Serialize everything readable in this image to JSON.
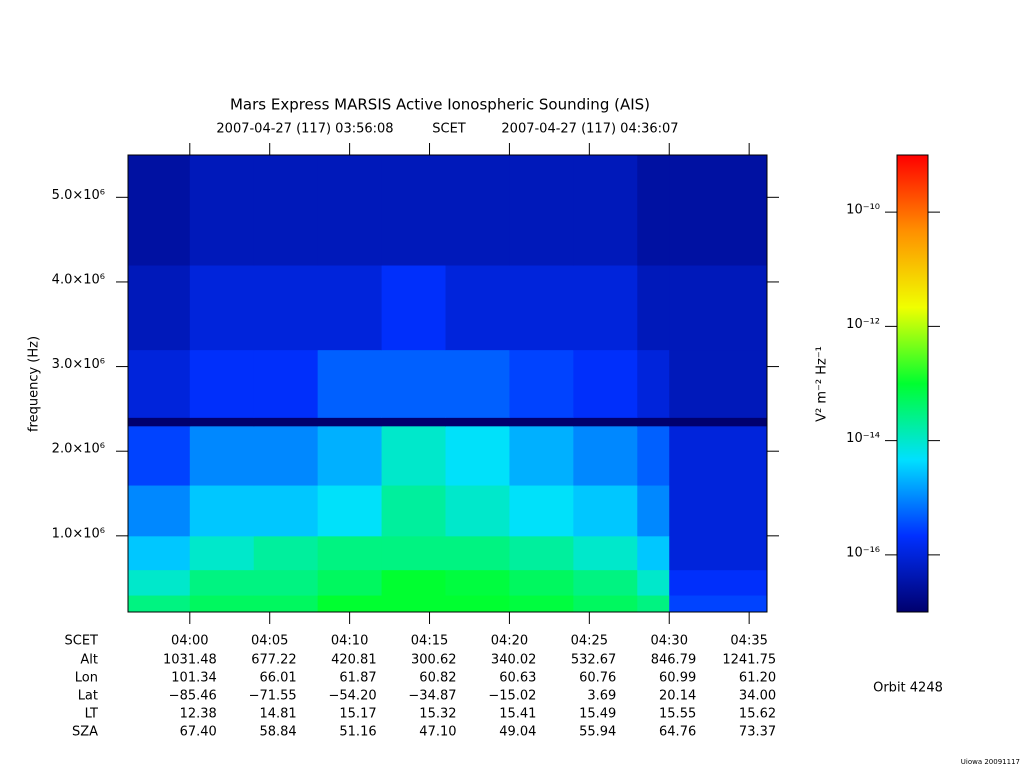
{
  "chart_data": {
    "type": "heatmap",
    "title": "Mars Express MARSIS Active Ionospheric Sounding (AIS)",
    "subtitle": {
      "start": "2007-04-27 (117) 03:56:08",
      "center": "SCET",
      "end": "2007-04-27 (117) 04:36:07"
    },
    "ylabel": "frequency (Hz)",
    "xlim": [
      "03:56:08",
      "04:36:07"
    ],
    "xticks": [
      "04:00",
      "04:05",
      "04:10",
      "04:15",
      "04:20",
      "04:25",
      "04:30",
      "04:35"
    ],
    "ylim": [
      100000,
      5500000
    ],
    "yticks": [
      {
        "value": 1000000,
        "label": "1.0×10⁶"
      },
      {
        "value": 2000000,
        "label": "2.0×10⁶"
      },
      {
        "value": 3000000,
        "label": "3.0×10⁶"
      },
      {
        "value": 4000000,
        "label": "4.0×10⁶"
      },
      {
        "value": 5000000,
        "label": "5.0×10⁶"
      }
    ],
    "xbins": [
      "03:56:08",
      "04:00:00",
      "04:04:00",
      "04:08:00",
      "04:12:00",
      "04:16:00",
      "04:20:00",
      "04:24:00",
      "04:28:00",
      "04:30:00",
      "04:36:07"
    ],
    "ybins": [
      100000,
      300000,
      600000,
      1000000,
      1600000,
      2300000,
      2400000,
      3200000,
      4200000,
      5500000
    ],
    "z": [
      [
        3e-14,
        5e-14,
        5e-14,
        1e-13,
        1e-13,
        1e-13,
        8e-14,
        5e-14,
        3e-14,
        3e-16
      ],
      [
        1e-14,
        3e-14,
        3e-14,
        5e-14,
        1e-13,
        8e-14,
        5e-14,
        3e-14,
        1e-14,
        2e-16
      ],
      [
        3e-15,
        1e-14,
        2e-14,
        3e-14,
        3e-14,
        3e-14,
        2e-14,
        1e-14,
        3e-15,
        1e-16
      ],
      [
        1e-15,
        3e-15,
        3e-15,
        5e-15,
        2e-14,
        1e-14,
        5e-15,
        3e-15,
        1e-15,
        1e-16
      ],
      [
        3e-16,
        1e-15,
        1e-15,
        2e-15,
        1e-14,
        5e-15,
        2e-15,
        1e-15,
        5e-16,
        1e-16
      ],
      [
        1e-17,
        1e-17,
        1e-17,
        1e-17,
        1e-17,
        1e-17,
        1e-17,
        1e-17,
        1e-17,
        1e-17
      ],
      [
        1e-16,
        2e-16,
        2e-16,
        5e-16,
        5e-16,
        5e-16,
        3e-16,
        2e-16,
        1e-16,
        5e-17
      ],
      [
        5e-17,
        1e-16,
        1e-16,
        1e-16,
        2e-16,
        1e-16,
        1e-16,
        1e-16,
        5e-17,
        5e-17
      ],
      [
        3e-17,
        5e-17,
        5e-17,
        5e-17,
        5e-17,
        5e-17,
        5e-17,
        5e-17,
        3e-17,
        3e-17
      ]
    ],
    "zlim": [
      1e-17,
      1e-09
    ],
    "zscale": "log",
    "zticks": [
      {
        "value": 1e-10,
        "label": "10⁻¹⁰"
      },
      {
        "value": 1e-12,
        "label": "10⁻¹²"
      },
      {
        "value": 1e-14,
        "label": "10⁻¹⁴"
      },
      {
        "value": 1e-16,
        "label": "10⁻¹⁶"
      }
    ],
    "zlabel": "V² m⁻² Hz⁻¹",
    "colormap": [
      "#00006e",
      "#0030ff",
      "#00e0ff",
      "#00ff30",
      "#f0ff00",
      "#ff9000",
      "#ff0000"
    ],
    "ephemeris": {
      "label": "SCET",
      "rows": [
        {
          "name": "Alt",
          "values": [
            "1031.48",
            "677.22",
            "420.81",
            "300.62",
            "340.02",
            "532.67",
            "846.79",
            "1241.75"
          ]
        },
        {
          "name": "Lon",
          "values": [
            "101.34",
            "66.01",
            "61.87",
            "60.82",
            "60.63",
            "60.76",
            "60.99",
            "61.20"
          ]
        },
        {
          "name": "Lat",
          "values": [
            "−85.46",
            "−71.55",
            "−54.20",
            "−34.87",
            "−15.02",
            "3.69",
            "20.14",
            "34.00"
          ]
        },
        {
          "name": "LT",
          "values": [
            "12.38",
            "14.81",
            "15.17",
            "15.32",
            "15.41",
            "15.49",
            "15.55",
            "15.62"
          ]
        },
        {
          "name": "SZA",
          "values": [
            "67.40",
            "58.84",
            "51.16",
            "47.10",
            "49.04",
            "55.94",
            "64.76",
            "73.37"
          ]
        }
      ]
    },
    "orbit": "Orbit 4248",
    "footer": "Uiowa 20091117"
  }
}
